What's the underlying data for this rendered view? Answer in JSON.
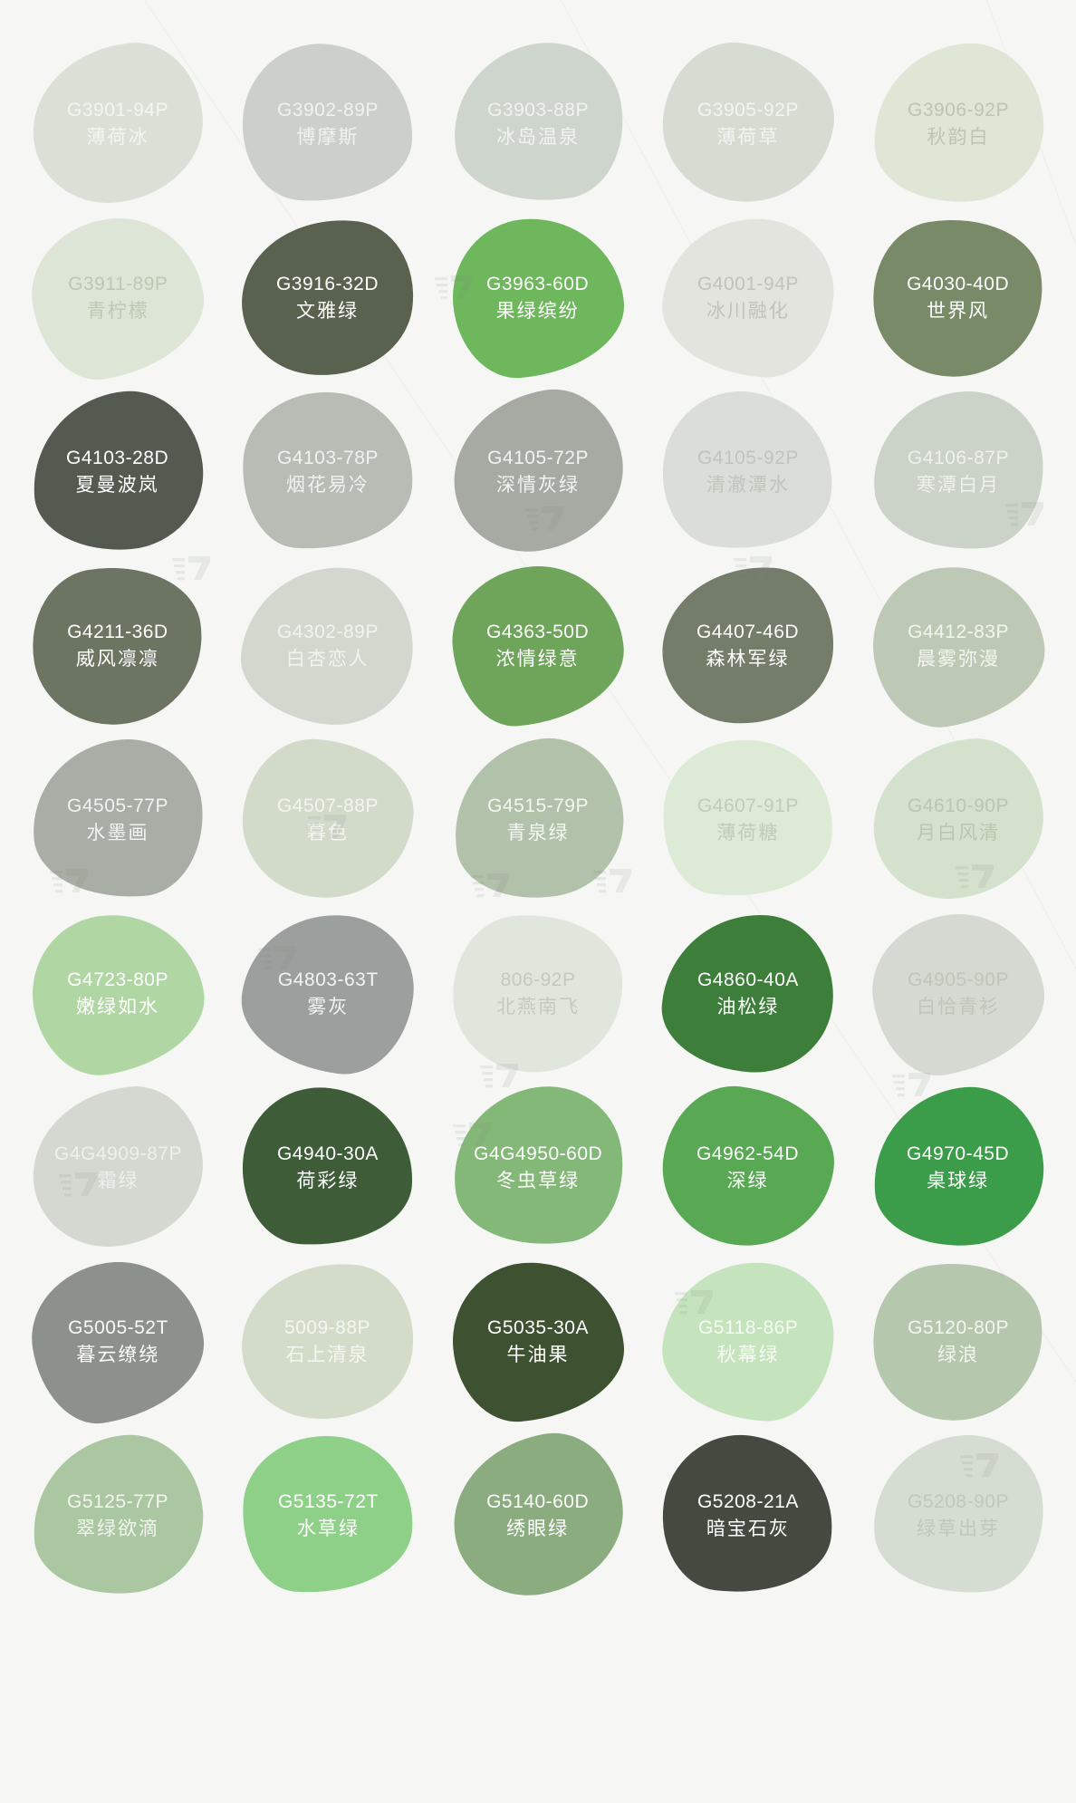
{
  "page": {
    "background": "#f6f7f5",
    "watermark_icon": "stacked-bars-seven-logo"
  },
  "swatches": [
    {
      "code": "G3901-94P",
      "name": "薄荷冰",
      "color": "#dbe0d7",
      "text_color": "#f3f5f1"
    },
    {
      "code": "G3902-89P",
      "name": "博摩斯",
      "color": "#cbd1ca",
      "text_color": "#f0f2ef"
    },
    {
      "code": "G3903-88P",
      "name": "冰岛温泉",
      "color": "#ced5cd",
      "text_color": "#f1f3f0"
    },
    {
      "code": "G3905-92P",
      "name": "薄荷草",
      "color": "#d7dcd3",
      "text_color": "#f2f4f0"
    },
    {
      "code": "G3906-92P",
      "name": "秋韵白",
      "color": "#e0e6d6",
      "text_color": "#bdc4b2"
    },
    {
      "code": "G3911-89P",
      "name": "青柠檬",
      "color": "#dde6d6",
      "text_color": "#bec7b5"
    },
    {
      "code": "G3916-32D",
      "name": "文雅绿",
      "color": "#59624f",
      "text_color": "#ffffff"
    },
    {
      "code": "G3963-60D",
      "name": "果绿缤纷",
      "color": "#6eb75d",
      "text_color": "#ffffff"
    },
    {
      "code": "G4001-94P",
      "name": "冰川融化",
      "color": "#e3e4de",
      "text_color": "#c1c2bb"
    },
    {
      "code": "G4030-40D",
      "name": "世界风",
      "color": "#788a67",
      "text_color": "#ffffff"
    },
    {
      "code": "G4103-28D",
      "name": "夏曼波岚",
      "color": "#555a50",
      "text_color": "#ffffff"
    },
    {
      "code": "G4103-78P",
      "name": "烟花易冷",
      "color": "#b7bcb5",
      "text_color": "#f0f2ef"
    },
    {
      "code": "G4105-72P",
      "name": "深情灰绿",
      "color": "#a6aaa3",
      "text_color": "#f2f3f1"
    },
    {
      "code": "G4105-92P",
      "name": "清澈潭水",
      "color": "#dbded8",
      "text_color": "#c0c4bc"
    },
    {
      "code": "G4106-87P",
      "name": "寒潭白月",
      "color": "#cbd2c8",
      "text_color": "#eef1ec"
    },
    {
      "code": "G4211-36D",
      "name": "威风凛凛",
      "color": "#6c7562",
      "text_color": "#ffffff"
    },
    {
      "code": "G4302-89P",
      "name": "白杏恋人",
      "color": "#d3d8cf",
      "text_color": "#f1f3ef"
    },
    {
      "code": "G4363-50D",
      "name": "浓情绿意",
      "color": "#6fa55b",
      "text_color": "#ffffff"
    },
    {
      "code": "G4407-46D",
      "name": "森林军绿",
      "color": "#747d6a",
      "text_color": "#ffffff"
    },
    {
      "code": "G4412-83P",
      "name": "晨雾弥漫",
      "color": "#bdc9b4",
      "text_color": "#f3f6f0"
    },
    {
      "code": "G4505-77P",
      "name": "水墨画",
      "color": "#a8ada5",
      "text_color": "#f2f3f0"
    },
    {
      "code": "G4507-88P",
      "name": "暮色",
      "color": "#d2dbca",
      "text_color": "#f3f6f0"
    },
    {
      "code": "G4515-79P",
      "name": "青泉绿",
      "color": "#b2c1aa",
      "text_color": "#f4f7f1"
    },
    {
      "code": "G4607-91P",
      "name": "薄荷糖",
      "color": "#dcead6",
      "text_color": "#bfccb7"
    },
    {
      "code": "G4610-90P",
      "name": "月白风清",
      "color": "#d4e1cc",
      "text_color": "#b9c7b0"
    },
    {
      "code": "G4723-80P",
      "name": "嫩绿如水",
      "color": "#b0d7a3",
      "text_color": "#ffffff"
    },
    {
      "code": "G4803-63T",
      "name": "雾灰",
      "color": "#9b9f9e",
      "text_color": "#f4f4f4"
    },
    {
      "code": "806-92P",
      "name": "北燕南飞",
      "color": "#e0e6db",
      "text_color": "#c3cabd"
    },
    {
      "code": "G4860-40A",
      "name": "油松绿",
      "color": "#3d7e3a",
      "text_color": "#ffffff"
    },
    {
      "code": "G4905-90P",
      "name": "白恰青衫",
      "color": "#d5d9d1",
      "text_color": "#c0c5ba"
    },
    {
      "code": "G4G4909-87P",
      "name": "霜绿",
      "color": "#d4d8d1",
      "text_color": "#eef0ec"
    },
    {
      "code": "G4940-30A",
      "name": "荷彩绿",
      "color": "#3e5c38",
      "text_color": "#ffffff"
    },
    {
      "code": "G4G4950-60D",
      "name": "冬虫草绿",
      "color": "#84b878",
      "text_color": "#ffffff"
    },
    {
      "code": "G4962-54D",
      "name": "深绿",
      "color": "#58a854",
      "text_color": "#ffffff"
    },
    {
      "code": "G4970-45D",
      "name": "桌球绿",
      "color": "#3b9c49",
      "text_color": "#ffffff"
    },
    {
      "code": "G5005-52T",
      "name": "暮云缭绕",
      "color": "#8d918b",
      "text_color": "#fafaf9"
    },
    {
      "code": "5009-88P",
      "name": "石上清泉",
      "color": "#d2dcc9",
      "text_color": "#f4f7f1"
    },
    {
      "code": "G5035-30A",
      "name": "牛油果",
      "color": "#3e5231",
      "text_color": "#ffffff"
    },
    {
      "code": "G5118-86P",
      "name": "秋幕绿",
      "color": "#c5e4bd",
      "text_color": "#f6fbf4"
    },
    {
      "code": "G5120-80P",
      "name": "绿浪",
      "color": "#b5c7ac",
      "text_color": "#f3f6f0"
    },
    {
      "code": "G5125-77P",
      "name": "翠绿欲滴",
      "color": "#aac7a1",
      "text_color": "#f2f6ef"
    },
    {
      "code": "G5135-72T",
      "name": "水草绿",
      "color": "#8fd088",
      "text_color": "#ffffff"
    },
    {
      "code": "G5140-60D",
      "name": "绣眼绿",
      "color": "#8aac7e",
      "text_color": "#ffffff"
    },
    {
      "code": "G5208-21A",
      "name": "暗宝石灰",
      "color": "#454a40",
      "text_color": "#ffffff"
    },
    {
      "code": "G5208-90P",
      "name": "绿草出芽",
      "color": "#d5dcd1",
      "text_color": "#c0c7bb"
    }
  ]
}
